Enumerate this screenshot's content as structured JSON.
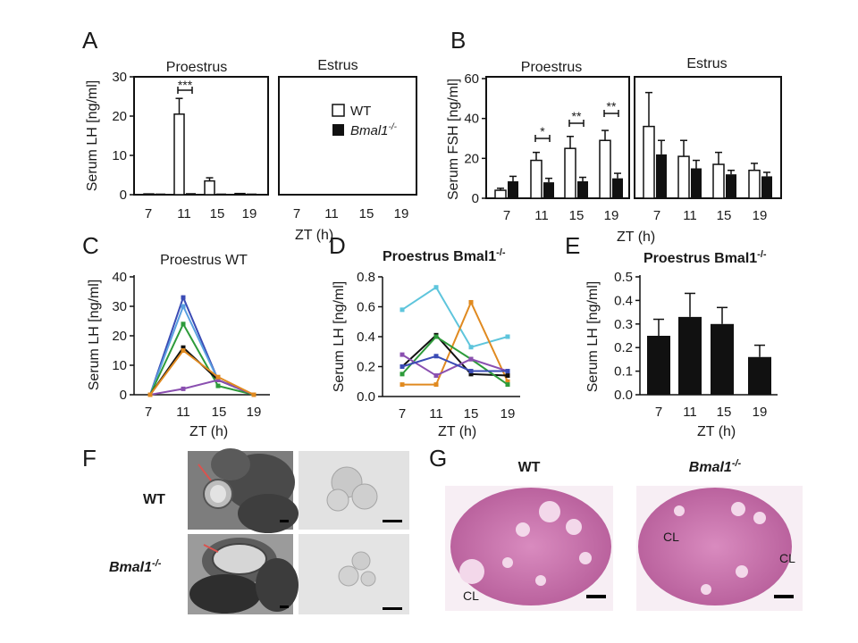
{
  "panel_letters": [
    "A",
    "B",
    "C",
    "D",
    "E",
    "F",
    "G"
  ],
  "colors": {
    "C_lines": [
      "#3a4bb5",
      "#5aa0e0",
      "#2d9b3a",
      "#111111",
      "#8a4fb0",
      "#e08a20"
    ],
    "D_lines": [
      "#5ec5dc",
      "#e08a20",
      "#111111",
      "#2d9b3a",
      "#8a4fb0",
      "#3a4bb5"
    ],
    "he_tissue": "#c56fa8",
    "he_follicle": "#f3d8ea"
  },
  "chart_data": [
    {
      "panel": "A",
      "type": "bar",
      "subpanels": [
        "Proestrus",
        "Estrus"
      ],
      "categories": [
        "7",
        "11",
        "15",
        "19"
      ],
      "series": [
        {
          "name": "WT",
          "values_proestrus": [
            0.2,
            20.5,
            3.5,
            0.3
          ],
          "err_proestrus": [
            0,
            4.0,
            0.8,
            0
          ],
          "values_estrus": [
            0,
            0,
            0,
            0
          ]
        },
        {
          "name": "Bmal1-/-",
          "values_proestrus": [
            0.3,
            0.4,
            0.3,
            0.3
          ],
          "err_proestrus": [
            0,
            0,
            0,
            0
          ],
          "values_estrus": [
            0,
            0,
            0,
            0
          ]
        }
      ],
      "significance": [
        {
          "category": "11",
          "label": "***"
        }
      ],
      "ylabel": "Serum LH [ng/ml]",
      "xlabel": "ZT (h)",
      "ylim": [
        0,
        30
      ],
      "yticks": [
        0,
        10,
        20,
        30
      ],
      "legend": [
        "WT",
        "Bmal1",
        "-/-"
      ],
      "legend_position": "top-right"
    },
    {
      "panel": "B",
      "type": "bar",
      "subpanels": [
        "Proestrus",
        "Estrus"
      ],
      "categories": [
        "7",
        "11",
        "15",
        "19"
      ],
      "series": [
        {
          "name": "WT",
          "values_proestrus": [
            4,
            19,
            25,
            29
          ],
          "err_proestrus": [
            1,
            4,
            6,
            5
          ],
          "values_estrus": [
            36,
            21,
            17,
            14
          ],
          "err_estrus": [
            17,
            8,
            6,
            3.5
          ]
        },
        {
          "name": "Bmal1-/-",
          "values_proestrus": [
            8.5,
            8,
            8.5,
            10
          ],
          "err_proestrus": [
            2.5,
            2,
            2,
            2.5
          ],
          "values_estrus": [
            22,
            15,
            12,
            11
          ],
          "err_estrus": [
            7,
            4,
            2,
            2
          ]
        }
      ],
      "significance": [
        {
          "category": "11",
          "label": "*"
        },
        {
          "category": "15",
          "label": "**"
        },
        {
          "category": "19",
          "label": "**"
        }
      ],
      "ylabel": "Serum FSH [ng/ml]",
      "xlabel": "ZT (h)",
      "ylim": [
        0,
        60
      ],
      "yticks": [
        0,
        20,
        40,
        60
      ]
    },
    {
      "panel": "C",
      "type": "line",
      "title": "Proestrus WT",
      "x": [
        7,
        11,
        15,
        19
      ],
      "series": [
        {
          "values": [
            0,
            33,
            5,
            0
          ]
        },
        {
          "values": [
            0,
            30,
            5,
            0
          ]
        },
        {
          "values": [
            0,
            24,
            3,
            0
          ]
        },
        {
          "values": [
            0,
            16,
            5,
            0
          ]
        },
        {
          "values": [
            0,
            2,
            5,
            0
          ]
        },
        {
          "values": [
            0,
            15,
            6,
            0
          ]
        }
      ],
      "ylabel": "Serum LH [ng/ml]",
      "xlabel": "ZT (h)",
      "ylim": [
        0,
        40
      ],
      "yticks": [
        0,
        10,
        20,
        30,
        40
      ]
    },
    {
      "panel": "D",
      "type": "line",
      "title": "Proestrus Bmal1",
      "title_sup": "-/-",
      "x": [
        7,
        11,
        15,
        19
      ],
      "series": [
        {
          "values": [
            0.58,
            0.73,
            0.33,
            0.4
          ]
        },
        {
          "values": [
            0.08,
            0.08,
            0.63,
            0.1
          ]
        },
        {
          "values": [
            0.2,
            0.41,
            0.15,
            0.14
          ]
        },
        {
          "values": [
            0.15,
            0.4,
            0.25,
            0.08
          ]
        },
        {
          "values": [
            0.28,
            0.14,
            0.25,
            0.17
          ]
        },
        {
          "values": [
            0.2,
            0.27,
            0.17,
            0.17
          ]
        }
      ],
      "ylabel": "Serum LH [ng/ml]",
      "xlabel": "ZT (h)",
      "ylim": [
        0,
        0.8
      ],
      "yticks": [
        "0.0",
        "0.2",
        "0.4",
        "0.6",
        "0.8"
      ]
    },
    {
      "panel": "E",
      "type": "bar",
      "title": "Proestrus Bmal1",
      "title_sup": "-/-",
      "categories": [
        "7",
        "11",
        "15",
        "19"
      ],
      "values": [
        0.25,
        0.33,
        0.3,
        0.16
      ],
      "errors": [
        0.07,
        0.1,
        0.07,
        0.05
      ],
      "ylabel": "Serum LH [ng/ml]",
      "xlabel": "ZT (h)",
      "ylim": [
        0,
        0.5
      ],
      "yticks": [
        "0.0",
        "0.1",
        "0.2",
        "0.3",
        "0.4",
        "0.5"
      ]
    }
  ],
  "photos": {
    "F": {
      "rows": [
        "WT",
        "Bmal1"
      ],
      "row_sup": "-/-"
    },
    "G": {
      "titles": [
        "WT",
        "Bmal1"
      ],
      "title_sup": "-/-",
      "labels": [
        "CL",
        "CL",
        "CL"
      ]
    }
  }
}
